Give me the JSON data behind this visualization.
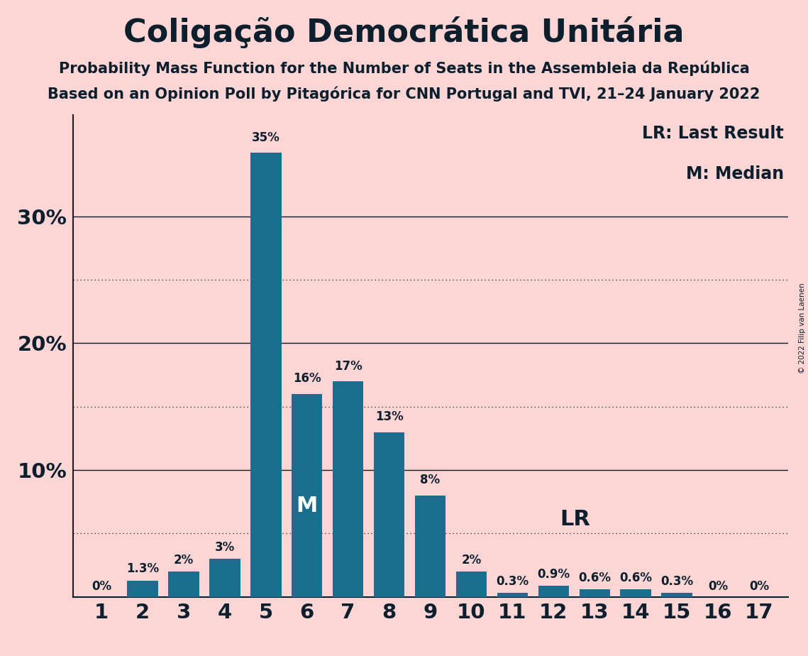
{
  "title": "Coligação Democrática Unitária",
  "subtitle1": "Probability Mass Function for the Number of Seats in the Assembleia da República",
  "subtitle2": "Based on an Opinion Poll by Pitagórica for CNN Portugal and TVI, 21–24 January 2022",
  "copyright": "© 2022 Filip van Laenen",
  "legend_lr": "LR: Last Result",
  "legend_m": "M: Median",
  "seats": [
    1,
    2,
    3,
    4,
    5,
    6,
    7,
    8,
    9,
    10,
    11,
    12,
    13,
    14,
    15,
    16,
    17
  ],
  "probabilities": [
    0.0,
    1.3,
    2.0,
    3.0,
    35.0,
    16.0,
    17.0,
    13.0,
    8.0,
    2.0,
    0.3,
    0.9,
    0.6,
    0.6,
    0.3,
    0.0,
    0.0
  ],
  "labels": [
    "0%",
    "1.3%",
    "2%",
    "3%",
    "35%",
    "16%",
    "17%",
    "13%",
    "8%",
    "2%",
    "0.3%",
    "0.9%",
    "0.6%",
    "0.6%",
    "0.3%",
    "0%",
    "0%"
  ],
  "bar_color": "#1a6e8e",
  "background_color": "#fcd5d5",
  "text_color": "#0d1f2d",
  "median_seat": 6,
  "lr_seat": 12,
  "dotted_lines": [
    5.0,
    15.0,
    25.0
  ],
  "solid_lines": [
    10.0,
    20.0,
    30.0
  ],
  "ylim": [
    0,
    38
  ],
  "ytick_positions": [
    10,
    20,
    30
  ],
  "ytick_labels": [
    "10%",
    "20%",
    "30%"
  ],
  "bar_width": 0.75,
  "title_fontsize": 32,
  "subtitle_fontsize": 15,
  "tick_fontsize": 21,
  "label_fontsize": 12,
  "legend_fontsize": 17,
  "m_fontsize": 22,
  "lr_fontsize": 22
}
